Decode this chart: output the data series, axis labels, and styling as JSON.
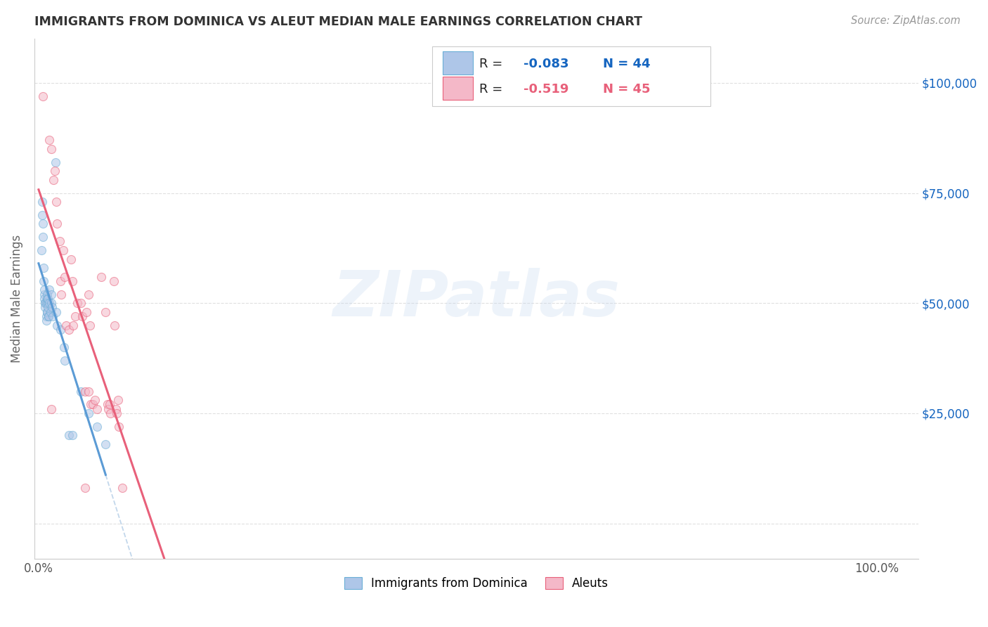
{
  "title": "IMMIGRANTS FROM DOMINICA VS ALEUT MEDIAN MALE EARNINGS CORRELATION CHART",
  "source": "Source: ZipAtlas.com",
  "ylabel": "Median Male Earnings",
  "watermark": "ZIPatlas",
  "legend_series": [
    {
      "label": "Immigrants from Dominica",
      "R": -0.083,
      "N": 44,
      "color": "#aec6e8",
      "edge_color": "#6aaed6"
    },
    {
      "label": "Aleuts",
      "R": -0.519,
      "N": 45,
      "color": "#f4b8c8",
      "edge_color": "#e8607a"
    }
  ],
  "blue_scatter": [
    [
      0.003,
      62000
    ],
    [
      0.004,
      70000
    ],
    [
      0.004,
      73000
    ],
    [
      0.005,
      68000
    ],
    [
      0.005,
      65000
    ],
    [
      0.006,
      58000
    ],
    [
      0.006,
      55000
    ],
    [
      0.007,
      52000
    ],
    [
      0.007,
      51000
    ],
    [
      0.007,
      53000
    ],
    [
      0.008,
      50000
    ],
    [
      0.008,
      50000
    ],
    [
      0.008,
      49000
    ],
    [
      0.009,
      47000
    ],
    [
      0.009,
      46000
    ],
    [
      0.009,
      50000
    ],
    [
      0.01,
      48000
    ],
    [
      0.01,
      48000
    ],
    [
      0.01,
      52000
    ],
    [
      0.01,
      51000
    ],
    [
      0.011,
      50000
    ],
    [
      0.011,
      51000
    ],
    [
      0.011,
      49000
    ],
    [
      0.012,
      47000
    ],
    [
      0.012,
      47000
    ],
    [
      0.013,
      53000
    ],
    [
      0.013,
      50000
    ],
    [
      0.014,
      48000
    ],
    [
      0.015,
      52000
    ],
    [
      0.015,
      50000
    ],
    [
      0.016,
      49000
    ],
    [
      0.017,
      47000
    ],
    [
      0.02,
      82000
    ],
    [
      0.021,
      48000
    ],
    [
      0.022,
      45000
    ],
    [
      0.026,
      44000
    ],
    [
      0.03,
      40000
    ],
    [
      0.031,
      37000
    ],
    [
      0.036,
      20000
    ],
    [
      0.04,
      20000
    ],
    [
      0.05,
      30000
    ],
    [
      0.06,
      25000
    ],
    [
      0.07,
      22000
    ],
    [
      0.08,
      18000
    ]
  ],
  "pink_scatter": [
    [
      0.005,
      97000
    ],
    [
      0.013,
      87000
    ],
    [
      0.015,
      85000
    ],
    [
      0.018,
      78000
    ],
    [
      0.019,
      80000
    ],
    [
      0.021,
      73000
    ],
    [
      0.022,
      68000
    ],
    [
      0.025,
      64000
    ],
    [
      0.026,
      55000
    ],
    [
      0.027,
      52000
    ],
    [
      0.029,
      62000
    ],
    [
      0.031,
      56000
    ],
    [
      0.033,
      45000
    ],
    [
      0.036,
      44000
    ],
    [
      0.039,
      60000
    ],
    [
      0.04,
      55000
    ],
    [
      0.041,
      45000
    ],
    [
      0.044,
      47000
    ],
    [
      0.046,
      50000
    ],
    [
      0.05,
      50000
    ],
    [
      0.052,
      47000
    ],
    [
      0.055,
      30000
    ],
    [
      0.057,
      48000
    ],
    [
      0.06,
      52000
    ],
    [
      0.061,
      45000
    ],
    [
      0.062,
      27000
    ],
    [
      0.065,
      27000
    ],
    [
      0.067,
      28000
    ],
    [
      0.07,
      26000
    ],
    [
      0.075,
      56000
    ],
    [
      0.08,
      48000
    ],
    [
      0.082,
      27000
    ],
    [
      0.083,
      26000
    ],
    [
      0.085,
      27000
    ],
    [
      0.086,
      25000
    ],
    [
      0.09,
      55000
    ],
    [
      0.091,
      45000
    ],
    [
      0.092,
      26000
    ],
    [
      0.093,
      25000
    ],
    [
      0.095,
      28000
    ],
    [
      0.096,
      22000
    ],
    [
      0.1,
      8000
    ],
    [
      0.015,
      26000
    ],
    [
      0.055,
      8000
    ],
    [
      0.06,
      30000
    ]
  ],
  "yticks": [
    0,
    25000,
    50000,
    75000,
    100000
  ],
  "xtick_labels": [
    "0.0%",
    "100.0%"
  ],
  "ylim": [
    -8000,
    110000
  ],
  "xlim": [
    -0.005,
    1.05
  ],
  "background_color": "#ffffff",
  "grid_color": "#e0e0e0",
  "title_color": "#333333",
  "source_color": "#999999",
  "axis_label_color": "#666666",
  "right_ytick_color": "#1565c0",
  "blue_line_color": "#5b9bd5",
  "pink_line_color": "#e8607a",
  "blue_dashed_color": "#b8d0e8",
  "scatter_alpha": 0.55,
  "scatter_size": 75,
  "watermark_color": "#c5d8ef",
  "watermark_alpha": 0.3
}
